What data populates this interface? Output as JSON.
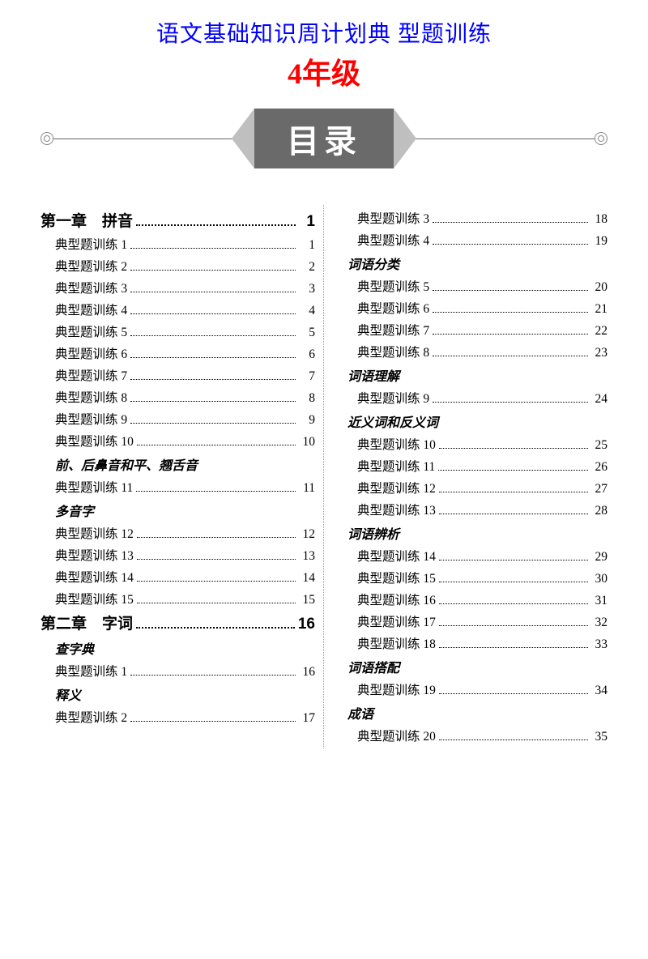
{
  "title": {
    "line1": "语文基础知识周计划典 型题训练",
    "line2": "4年级"
  },
  "banner": "目录",
  "left": [
    {
      "t": "chapter",
      "label": "第一章　拼音",
      "pg": "1"
    },
    {
      "t": "entry",
      "label": "典型题训练 1",
      "pg": "1"
    },
    {
      "t": "entry",
      "label": "典型题训练 2",
      "pg": "2"
    },
    {
      "t": "entry",
      "label": "典型题训练 3",
      "pg": "3"
    },
    {
      "t": "entry",
      "label": "典型题训练 4",
      "pg": "4"
    },
    {
      "t": "entry",
      "label": "典型题训练 5",
      "pg": "5"
    },
    {
      "t": "entry",
      "label": "典型题训练 6",
      "pg": "6"
    },
    {
      "t": "entry",
      "label": "典型题训练 7",
      "pg": "7"
    },
    {
      "t": "entry",
      "label": "典型题训练 8",
      "pg": "8"
    },
    {
      "t": "entry",
      "label": "典型题训练 9",
      "pg": "9"
    },
    {
      "t": "entry",
      "label": "典型题训练 10",
      "pg": "10"
    },
    {
      "t": "sub",
      "label": "前、后鼻音和平、翘舌音"
    },
    {
      "t": "entry",
      "label": "典型题训练 11",
      "pg": "11"
    },
    {
      "t": "sub",
      "label": "多音字"
    },
    {
      "t": "entry",
      "label": "典型题训练 12",
      "pg": "12"
    },
    {
      "t": "entry",
      "label": "典型题训练 13",
      "pg": "13"
    },
    {
      "t": "entry",
      "label": "典型题训练 14",
      "pg": "14"
    },
    {
      "t": "entry",
      "label": "典型题训练 15",
      "pg": "15"
    },
    {
      "t": "chapter",
      "label": "第二章　字词",
      "pg": "16"
    },
    {
      "t": "sub",
      "label": "查字典"
    },
    {
      "t": "entry",
      "label": "典型题训练 1",
      "pg": "16"
    },
    {
      "t": "sub",
      "label": "释义"
    },
    {
      "t": "entry",
      "label": "典型题训练 2",
      "pg": "17"
    }
  ],
  "right": [
    {
      "t": "entry2",
      "label": "典型题训练 3",
      "pg": "18"
    },
    {
      "t": "entry2",
      "label": "典型题训练 4",
      "pg": "19"
    },
    {
      "t": "sub",
      "label": "词语分类"
    },
    {
      "t": "entry2",
      "label": "典型题训练 5",
      "pg": "20"
    },
    {
      "t": "entry2",
      "label": "典型题训练 6",
      "pg": "21"
    },
    {
      "t": "entry2",
      "label": "典型题训练 7",
      "pg": "22"
    },
    {
      "t": "entry2",
      "label": "典型题训练 8",
      "pg": "23"
    },
    {
      "t": "sub",
      "label": "词语理解"
    },
    {
      "t": "entry2",
      "label": "典型题训练 9",
      "pg": "24"
    },
    {
      "t": "sub",
      "label": "近义词和反义词"
    },
    {
      "t": "entry2",
      "label": "典型题训练 10",
      "pg": "25"
    },
    {
      "t": "entry2",
      "label": "典型题训练 11",
      "pg": "26"
    },
    {
      "t": "entry2",
      "label": "典型题训练 12",
      "pg": "27"
    },
    {
      "t": "entry2",
      "label": "典型题训练 13",
      "pg": "28"
    },
    {
      "t": "sub",
      "label": "词语辨析"
    },
    {
      "t": "entry2",
      "label": "典型题训练 14",
      "pg": "29"
    },
    {
      "t": "entry2",
      "label": "典型题训练 15",
      "pg": "30"
    },
    {
      "t": "entry2",
      "label": "典型题训练 16",
      "pg": "31"
    },
    {
      "t": "entry2",
      "label": "典型题训练 17",
      "pg": "32"
    },
    {
      "t": "entry2",
      "label": "典型题训练 18",
      "pg": "33"
    },
    {
      "t": "sub",
      "label": "词语搭配"
    },
    {
      "t": "entry2",
      "label": "典型题训练 19",
      "pg": "34"
    },
    {
      "t": "sub",
      "label": "成语"
    },
    {
      "t": "entry2",
      "label": "典型题训练 20",
      "pg": "35"
    }
  ]
}
